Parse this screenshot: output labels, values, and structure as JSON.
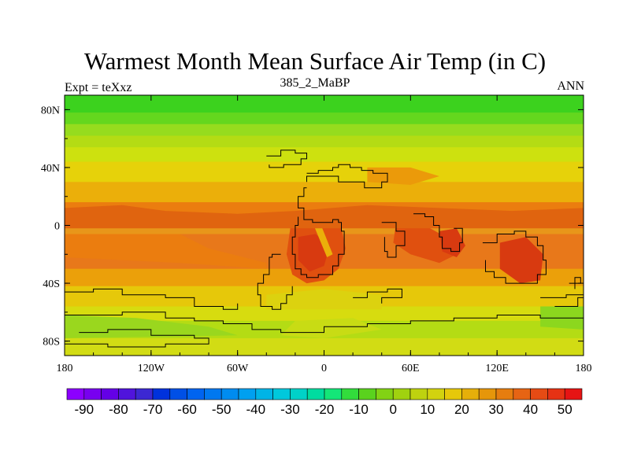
{
  "title": "Warmest Month Mean Surface Air Temp (in C)",
  "subtitle_left": "Expt = teXxz",
  "subtitle_center": "385_2_MaBP",
  "subtitle_right": "ANN",
  "map": {
    "lon_range": [
      -180,
      180
    ],
    "lat_range": [
      -90,
      90
    ],
    "x_ticks": [
      {
        "lon": -180,
        "label": "180"
      },
      {
        "lon": -120,
        "label": "120W"
      },
      {
        "lon": -60,
        "label": "60W"
      },
      {
        "lon": 0,
        "label": "0"
      },
      {
        "lon": 60,
        "label": "60E"
      },
      {
        "lon": 120,
        "label": "120E"
      },
      {
        "lon": 180,
        "label": "180"
      }
    ],
    "y_ticks": [
      {
        "lat": 80,
        "label": "80N"
      },
      {
        "lat": 40,
        "label": "40N"
      },
      {
        "lat": 0,
        "label": "0"
      },
      {
        "lat": -40,
        "label": "40S"
      },
      {
        "lat": -80,
        "label": "80S"
      }
    ],
    "latitude_bands": [
      {
        "lat_top": 90,
        "lat_bottom": 78,
        "color": "#3cd21e"
      },
      {
        "lat_top": 78,
        "lat_bottom": 70,
        "color": "#64d71e"
      },
      {
        "lat_top": 70,
        "lat_bottom": 62,
        "color": "#96dc1e"
      },
      {
        "lat_top": 62,
        "lat_bottom": 54,
        "color": "#b4dc14"
      },
      {
        "lat_top": 54,
        "lat_bottom": 44,
        "color": "#cde10f"
      },
      {
        "lat_top": 44,
        "lat_bottom": 30,
        "color": "#e6d20a"
      },
      {
        "lat_top": 30,
        "lat_bottom": 16,
        "color": "#ebaf0a"
      },
      {
        "lat_top": 16,
        "lat_bottom": 8,
        "color": "#eb7d0f"
      },
      {
        "lat_top": 8,
        "lat_bottom": -6,
        "color": "#e8961a"
      },
      {
        "lat_top": -6,
        "lat_bottom": -30,
        "color": "#e8781a"
      },
      {
        "lat_top": -30,
        "lat_bottom": -42,
        "color": "#eba00a"
      },
      {
        "lat_top": -42,
        "lat_bottom": -56,
        "color": "#e6c80a"
      },
      {
        "lat_top": -56,
        "lat_bottom": -66,
        "color": "#d7dc0f"
      },
      {
        "lat_top": -66,
        "lat_bottom": -78,
        "color": "#b4dc14"
      },
      {
        "lat_top": -78,
        "lat_bottom": -90,
        "color": "#d2dc14"
      }
    ],
    "warm_regions": [
      {
        "name": "africa-hot",
        "color": "#e0500f",
        "points": [
          [
            -22,
            8
          ],
          [
            -10,
            6
          ],
          [
            5,
            4
          ],
          [
            12,
            -2
          ],
          [
            15,
            -16
          ],
          [
            10,
            -30
          ],
          [
            0,
            -38
          ],
          [
            -12,
            -40
          ],
          [
            -22,
            -34
          ],
          [
            -26,
            -20
          ]
        ]
      },
      {
        "name": "africa-core",
        "color": "#d83a10",
        "points": [
          [
            -18,
            -8
          ],
          [
            -6,
            -6
          ],
          [
            4,
            -14
          ],
          [
            0,
            -28
          ],
          [
            -10,
            -32
          ],
          [
            -18,
            -24
          ]
        ]
      },
      {
        "name": "africa-streak",
        "color": "#ebaf0a",
        "points": [
          [
            -8,
            2
          ],
          [
            -2,
            0
          ],
          [
            6,
            -20
          ],
          [
            2,
            -22
          ]
        ]
      },
      {
        "name": "indian-hot",
        "color": "#e0500f",
        "points": [
          [
            50,
            2
          ],
          [
            70,
            0
          ],
          [
            88,
            -10
          ],
          [
            92,
            -20
          ],
          [
            80,
            -26
          ],
          [
            60,
            -20
          ],
          [
            48,
            -12
          ]
        ]
      },
      {
        "name": "india-hot",
        "color": "#d83a10",
        "points": [
          [
            80,
            -4
          ],
          [
            92,
            -2
          ],
          [
            98,
            -14
          ],
          [
            92,
            -22
          ],
          [
            82,
            -18
          ]
        ]
      },
      {
        "name": "australia-hot",
        "color": "#d83a10",
        "points": [
          [
            122,
            -12
          ],
          [
            140,
            -8
          ],
          [
            152,
            -20
          ],
          [
            150,
            -38
          ],
          [
            136,
            -40
          ],
          [
            122,
            -30
          ]
        ]
      },
      {
        "name": "tropics-north",
        "color": "#e0640f",
        "points": [
          [
            -180,
            12
          ],
          [
            -140,
            14
          ],
          [
            -110,
            10
          ],
          [
            -60,
            8
          ],
          [
            -20,
            10
          ],
          [
            30,
            14
          ],
          [
            80,
            12
          ],
          [
            130,
            10
          ],
          [
            180,
            12
          ],
          [
            180,
            -2
          ],
          [
            -180,
            -2
          ]
        ]
      },
      {
        "name": "east-pacific-band",
        "color": "#eb7d0f",
        "points": [
          [
            -180,
            -6
          ],
          [
            -100,
            -6
          ],
          [
            -80,
            -16
          ],
          [
            -40,
            -26
          ],
          [
            -40,
            -30
          ],
          [
            -100,
            -26
          ],
          [
            -180,
            -22
          ]
        ]
      },
      {
        "name": "middle-east-warm",
        "color": "#eb9a0a",
        "points": [
          [
            30,
            40
          ],
          [
            60,
            40
          ],
          [
            80,
            34
          ],
          [
            60,
            28
          ],
          [
            30,
            30
          ]
        ]
      },
      {
        "name": "south-atlantic-cool",
        "color": "#dcd20f",
        "points": [
          [
            -40,
            -48
          ],
          [
            0,
            -44
          ],
          [
            40,
            -48
          ],
          [
            40,
            -58
          ],
          [
            -40,
            -58
          ]
        ]
      },
      {
        "name": "antarctic-green",
        "color": "#9ad71e",
        "points": [
          [
            -180,
            -62
          ],
          [
            -130,
            -64
          ],
          [
            -80,
            -70
          ],
          [
            -60,
            -76
          ],
          [
            -180,
            -78
          ]
        ]
      },
      {
        "name": "antarctic-green-east",
        "color": "#8cd71e",
        "points": [
          [
            150,
            -56
          ],
          [
            180,
            -56
          ],
          [
            180,
            -72
          ],
          [
            150,
            -70
          ]
        ]
      },
      {
        "name": "antarctic-patch",
        "color": "#c8dc14",
        "points": [
          [
            -20,
            -66
          ],
          [
            20,
            -64
          ],
          [
            40,
            -72
          ],
          [
            0,
            -78
          ],
          [
            -30,
            -76
          ]
        ]
      }
    ],
    "coastlines": [
      [
        [
          -12,
          36
        ],
        [
          -4,
          38
        ],
        [
          6,
          40
        ],
        [
          10,
          42
        ],
        [
          18,
          40
        ],
        [
          26,
          38
        ],
        [
          34,
          36
        ],
        [
          44,
          36
        ],
        [
          44,
          30
        ],
        [
          40,
          26
        ],
        [
          34,
          26
        ],
        [
          28,
          30
        ],
        [
          20,
          30
        ],
        [
          10,
          34
        ],
        [
          0,
          34
        ],
        [
          -6,
          34
        ],
        [
          -12,
          30
        ]
      ],
      [
        [
          -12,
          26
        ],
        [
          -14,
          20
        ],
        [
          -18,
          12
        ],
        [
          -14,
          4
        ],
        [
          -8,
          2
        ],
        [
          0,
          2
        ],
        [
          6,
          4
        ],
        [
          10,
          2
        ],
        [
          12,
          -4
        ],
        [
          14,
          -12
        ],
        [
          14,
          -20
        ],
        [
          10,
          -28
        ],
        [
          6,
          -34
        ],
        [
          -4,
          -36
        ],
        [
          -12,
          -34
        ],
        [
          -16,
          -30
        ],
        [
          -20,
          -20
        ],
        [
          -22,
          -8
        ],
        [
          -20,
          0
        ],
        [
          -18,
          6
        ]
      ],
      [
        [
          -30,
          -20
        ],
        [
          -36,
          -22
        ],
        [
          -38,
          -28
        ],
        [
          -38,
          -34
        ],
        [
          -42,
          -40
        ],
        [
          -46,
          -48
        ],
        [
          -44,
          -56
        ],
        [
          -36,
          -58
        ],
        [
          -30,
          -54
        ],
        [
          -26,
          -48
        ],
        [
          -22,
          -42
        ]
      ],
      [
        [
          62,
          8
        ],
        [
          70,
          6
        ],
        [
          76,
          0
        ],
        [
          80,
          -8
        ],
        [
          82,
          -16
        ],
        [
          88,
          -18
        ],
        [
          94,
          -12
        ],
        [
          96,
          -2
        ],
        [
          90,
          -2
        ]
      ],
      [
        [
          110,
          -12
        ],
        [
          120,
          -6
        ],
        [
          132,
          -4
        ],
        [
          140,
          -8
        ],
        [
          148,
          -14
        ],
        [
          152,
          -24
        ],
        [
          154,
          -34
        ],
        [
          148,
          -40
        ],
        [
          138,
          -40
        ],
        [
          126,
          -36
        ],
        [
          118,
          -32
        ],
        [
          112,
          -24
        ]
      ],
      [
        [
          -180,
          -62
        ],
        [
          -140,
          -60
        ],
        [
          -110,
          -64
        ],
        [
          -90,
          -66
        ],
        [
          -70,
          -68
        ],
        [
          -50,
          -72
        ],
        [
          -30,
          -74
        ],
        [
          0,
          -70
        ],
        [
          30,
          -68
        ],
        [
          60,
          -66
        ],
        [
          90,
          -64
        ],
        [
          120,
          -62
        ],
        [
          150,
          -64
        ],
        [
          180,
          -62
        ]
      ],
      [
        [
          -170,
          -74
        ],
        [
          -150,
          -72
        ],
        [
          -120,
          -76
        ],
        [
          -90,
          -78
        ],
        [
          -80,
          -82
        ],
        [
          -110,
          -84
        ],
        [
          -150,
          -82
        ],
        [
          -180,
          -80
        ]
      ],
      [
        [
          -40,
          48
        ],
        [
          -30,
          52
        ],
        [
          -20,
          50
        ],
        [
          -12,
          46
        ],
        [
          -16,
          42
        ],
        [
          -28,
          40
        ],
        [
          -38,
          42
        ]
      ],
      [
        [
          -180,
          -46
        ],
        [
          -160,
          -44
        ],
        [
          -140,
          -48
        ],
        [
          -110,
          -50
        ],
        [
          -90,
          -56
        ],
        [
          -70,
          -58
        ],
        [
          -60,
          -54
        ]
      ],
      [
        [
          20,
          -50
        ],
        [
          30,
          -46
        ],
        [
          44,
          -44
        ],
        [
          54,
          -50
        ],
        [
          40,
          -54
        ]
      ],
      [
        [
          150,
          -50
        ],
        [
          168,
          -48
        ],
        [
          180,
          -50
        ],
        [
          176,
          -56
        ],
        [
          160,
          -56
        ]
      ],
      [
        [
          170,
          -40
        ],
        [
          174,
          -36
        ],
        [
          178,
          -40
        ],
        [
          174,
          -44
        ]
      ],
      [
        [
          40,
          2
        ],
        [
          50,
          -4
        ],
        [
          56,
          -14
        ],
        [
          50,
          -22
        ],
        [
          44,
          -18
        ],
        [
          42,
          -8
        ]
      ]
    ]
  },
  "colorbar": {
    "colors": [
      "#8c00ff",
      "#7800f0",
      "#6400e6",
      "#5014dc",
      "#3c28d2",
      "#0032dc",
      "#0050e6",
      "#0064f0",
      "#0078f0",
      "#008cf0",
      "#00a0f0",
      "#00b4e6",
      "#00c8dc",
      "#00d2c8",
      "#00dca0",
      "#14e678",
      "#32dc3c",
      "#5ad21e",
      "#82d214",
      "#a0d20f",
      "#bed20f",
      "#d2d20f",
      "#e6c80a",
      "#e6af0a",
      "#e6960a",
      "#e67d0f",
      "#e66414",
      "#e64b14",
      "#e63214",
      "#e61414"
    ],
    "labels": [
      "-90",
      "-80",
      "-70",
      "-60",
      "-50",
      "-40",
      "-30",
      "-20",
      "-10",
      "0",
      "10",
      "20",
      "30",
      "40",
      "50"
    ],
    "label_box_indices": [
      1,
      3,
      5,
      7,
      9,
      11,
      13,
      15,
      17,
      19,
      21,
      23,
      25,
      27,
      29
    ]
  }
}
